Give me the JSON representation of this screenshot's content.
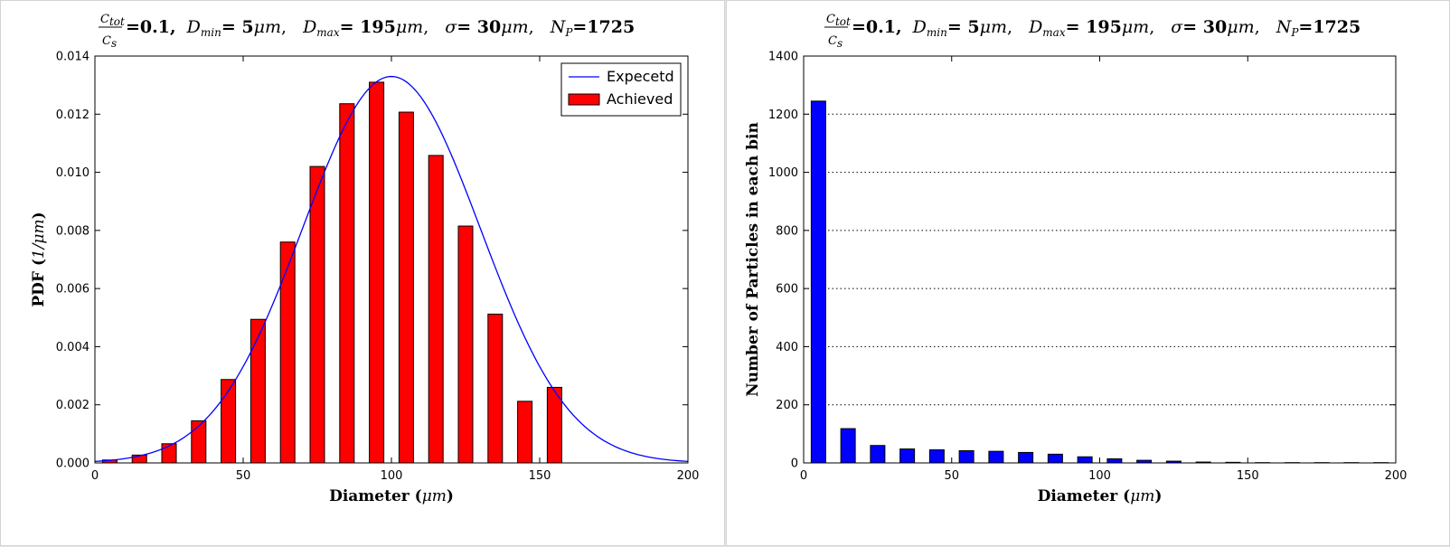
{
  "colors": {
    "expected_line": "#0000ff",
    "achieved_bar": "#ff0000",
    "count_bar": "#0000ff",
    "grid": "#000000"
  },
  "title": {
    "ratio_num": "C",
    "ratio_num_sub": "tot",
    "ratio_den": "C",
    "ratio_den_sub": "s",
    "ratio_value": "=0.1,",
    "dmin_label": "D",
    "dmin_sub": "min",
    "dmin_value": "= 5",
    "dmin_unit": "μm",
    "dmax_label": "D",
    "dmax_sub": "max",
    "dmax_value": "= 195",
    "dmax_unit": "μm",
    "sigma_label": "σ",
    "sigma_value": "= 30",
    "sigma_unit": "μm",
    "np_label": "N",
    "np_sub": "P",
    "np_value": "=1725"
  },
  "chart_data": [
    {
      "type": "bar",
      "title": "C_tot/C_s=0.1, D_min= 5μm, D_max= 195μm, σ= 30μm, N_P=1725",
      "xlabel": "Diameter (μm)",
      "ylabel": "PDF (1/μm)",
      "xlim": [
        0,
        200
      ],
      "ylim": [
        0,
        0.014
      ],
      "xticks": [
        "0",
        "50",
        "100",
        "150",
        "200"
      ],
      "yticks": [
        "0.000",
        "0.002",
        "0.004",
        "0.006",
        "0.008",
        "0.010",
        "0.012",
        "0.014"
      ],
      "grid": false,
      "legend_position": "top-right",
      "series": [
        {
          "name": "Expecetd",
          "kind": "line",
          "function": "normal",
          "mean": 100,
          "sigma": 30
        },
        {
          "name": "Achieved",
          "kind": "bar",
          "x": [
            5,
            15,
            25,
            35,
            45,
            55,
            65,
            75,
            85,
            95,
            105,
            115,
            125,
            135,
            145,
            155,
            165
          ],
          "values": [
            0.0001,
            0.00027,
            0.00066,
            0.00145,
            0.00287,
            0.00494,
            0.0076,
            0.0102,
            0.01236,
            0.0131,
            0.01207,
            0.01058,
            0.00815,
            0.00512,
            0.00212,
            0.0026,
            0.0
          ]
        }
      ]
    },
    {
      "type": "bar",
      "title": "C_tot/C_s=0.1, D_min= 5μm, D_max= 195μm, σ= 30μm, N_P=1725",
      "xlabel": "Diameter (μm)",
      "ylabel": "Number of Particles in each bin",
      "xlim": [
        0,
        200
      ],
      "ylim": [
        0,
        1400
      ],
      "xticks": [
        "0",
        "50",
        "100",
        "150",
        "200"
      ],
      "yticks": [
        "0",
        "200",
        "400",
        "600",
        "800",
        "1000",
        "1200",
        "1400"
      ],
      "grid": true,
      "grid_axis": "y",
      "series": [
        {
          "kind": "bar",
          "x": [
            5,
            15,
            25,
            35,
            45,
            55,
            65,
            75,
            85,
            95,
            105,
            115,
            125,
            135,
            145,
            155,
            165,
            175,
            185,
            195
          ],
          "values": [
            1245,
            118,
            60,
            48,
            45,
            42,
            40,
            36,
            30,
            21,
            14,
            9,
            6,
            3,
            2,
            1,
            1,
            1,
            1,
            1
          ]
        }
      ]
    }
  ]
}
